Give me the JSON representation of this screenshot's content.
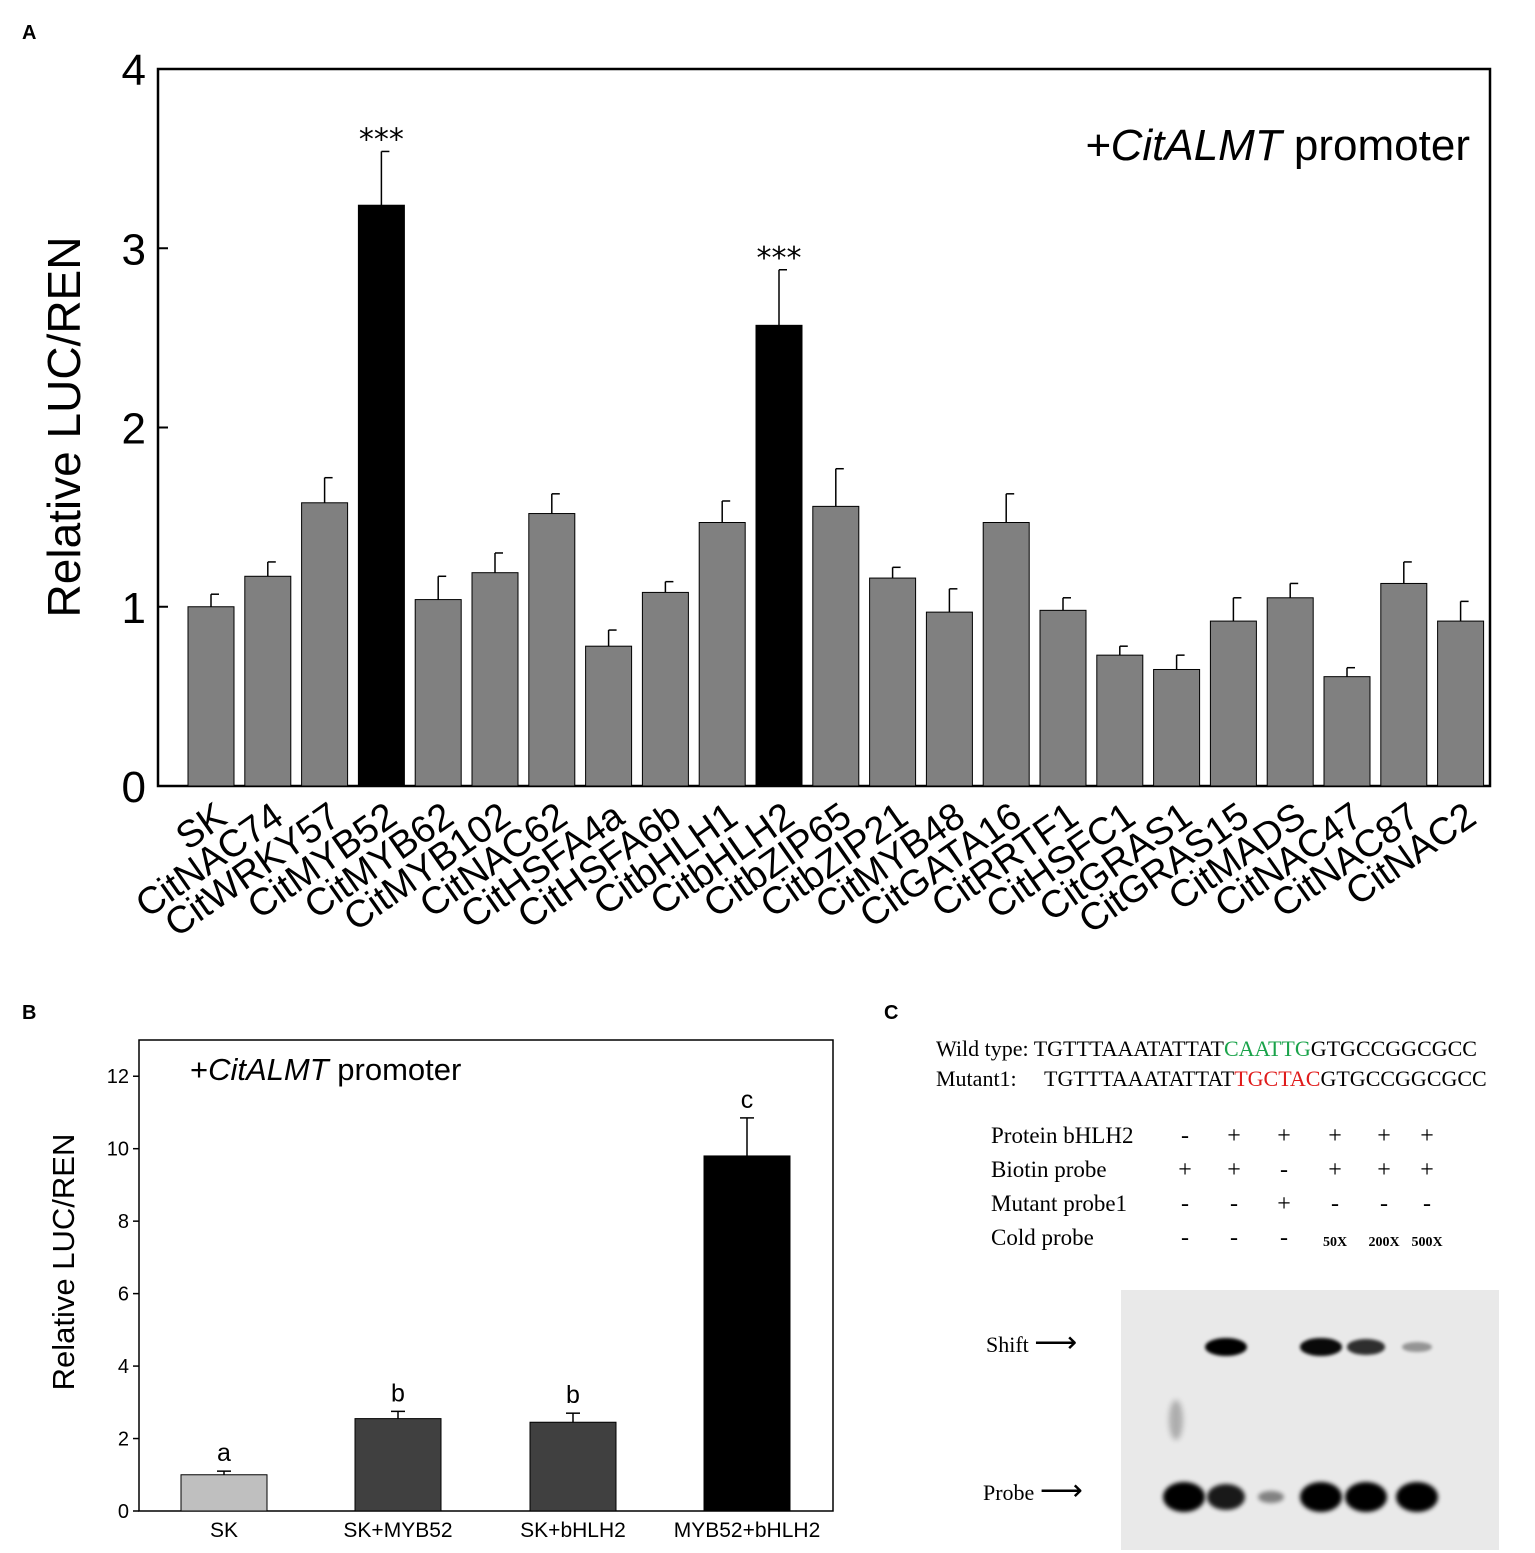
{
  "panels": {
    "a": "A",
    "b": "B",
    "c": "C"
  },
  "chart_data": [
    {
      "type": "bar",
      "panel": "A",
      "annotation": "+CitALMT promoter",
      "annotation_parts": {
        "prefix": "+",
        "italic": "CitALMT",
        "suffix": " promoter"
      },
      "ylabel": "Relative LUC/REN",
      "xlabel": "",
      "ylim": [
        0,
        4
      ],
      "yticks": [
        0,
        1,
        2,
        3,
        4
      ],
      "grid": false,
      "categories": [
        "SK",
        "CitNAC74",
        "CitWRKY57",
        "CitMYB52",
        "CitMYB62",
        "CitMYB102",
        "CitNAC62",
        "CitHSFA4a",
        "CitHSFA6b",
        "CitbHLH1",
        "CitbHLH2",
        "CitbZIP65",
        "CitbZIP21",
        "CitMYB48",
        "CitGATA16",
        "CitRRTF1",
        "CitHSFC1",
        "CitGRAS1",
        "CitGRAS15",
        "CitMADS",
        "CitNAC47",
        "CitNAC87",
        "CitNAC2"
      ],
      "values": [
        1.0,
        1.17,
        1.58,
        3.24,
        1.04,
        1.19,
        1.52,
        0.78,
        1.08,
        1.47,
        2.57,
        1.56,
        1.16,
        0.97,
        1.47,
        0.98,
        0.73,
        0.65,
        0.92,
        1.05,
        0.61,
        1.13,
        0.92
      ],
      "errors": [
        0.07,
        0.08,
        0.14,
        0.3,
        0.13,
        0.11,
        0.11,
        0.09,
        0.06,
        0.12,
        0.31,
        0.21,
        0.06,
        0.13,
        0.16,
        0.07,
        0.05,
        0.08,
        0.13,
        0.08,
        0.05,
        0.12,
        0.11
      ],
      "highlight": [
        3,
        10
      ],
      "significance": [
        {
          "index": 3,
          "label": "***"
        },
        {
          "index": 10,
          "label": "***"
        }
      ],
      "colors": {
        "normal": "#808080",
        "highlight": "#000000"
      }
    },
    {
      "type": "bar",
      "panel": "B",
      "annotation": "+CitALMT promoter",
      "annotation_parts": {
        "prefix": "+",
        "italic": "CitALMT",
        "suffix": " promoter"
      },
      "ylabel": "Relative LUC/REN",
      "xlabel": "",
      "ylim": [
        0,
        13
      ],
      "yticks": [
        0,
        2,
        4,
        6,
        8,
        10,
        12
      ],
      "grid": false,
      "categories": [
        "SK",
        "SK+MYB52",
        "SK+bHLH2",
        "MYB52+bHLH2"
      ],
      "values": [
        1.0,
        2.55,
        2.45,
        9.8
      ],
      "errors": [
        0.1,
        0.2,
        0.25,
        1.05
      ],
      "letters": [
        "a",
        "b",
        "b",
        "c"
      ],
      "colors": [
        "#bfbfbf",
        "#404040",
        "#404040",
        "#000000"
      ]
    }
  ],
  "panel_c": {
    "sequences": [
      {
        "label": "Wild type:",
        "pre": "TGTTTAAATATTAT",
        "motif": "CAATTG",
        "post": "GTGCCGGCGCC",
        "motif_color": "#1aa34a"
      },
      {
        "label": "Mutant1:",
        "pre": "TGTTTAAATATTAT",
        "motif": "TGCTAC",
        "post": "GTGCCGGCGCC",
        "motif_color": "#e01b1b"
      }
    ],
    "conditions": [
      {
        "label": "Protein bHLH2",
        "values": [
          "-",
          "+",
          "+",
          "+",
          "+",
          "+"
        ]
      },
      {
        "label": "Biotin probe",
        "values": [
          "+",
          "+",
          "-",
          "+",
          "+",
          "+"
        ]
      },
      {
        "label": "Mutant probe1",
        "values": [
          "-",
          "-",
          "+",
          "-",
          "-",
          "-"
        ]
      },
      {
        "label": "Cold probe",
        "values": [
          "-",
          "-",
          "-",
          "50X",
          "200X",
          "500X"
        ]
      }
    ],
    "gel_labels": {
      "shift": "Shift",
      "probe": "Probe",
      "arrow": "⟶"
    },
    "shift_band_intensity": [
      0,
      1.0,
      0,
      0.95,
      0.75,
      0.2
    ],
    "probe_band_intensity": [
      1.0,
      0.85,
      0.25,
      1.0,
      1.0,
      1.0
    ]
  }
}
